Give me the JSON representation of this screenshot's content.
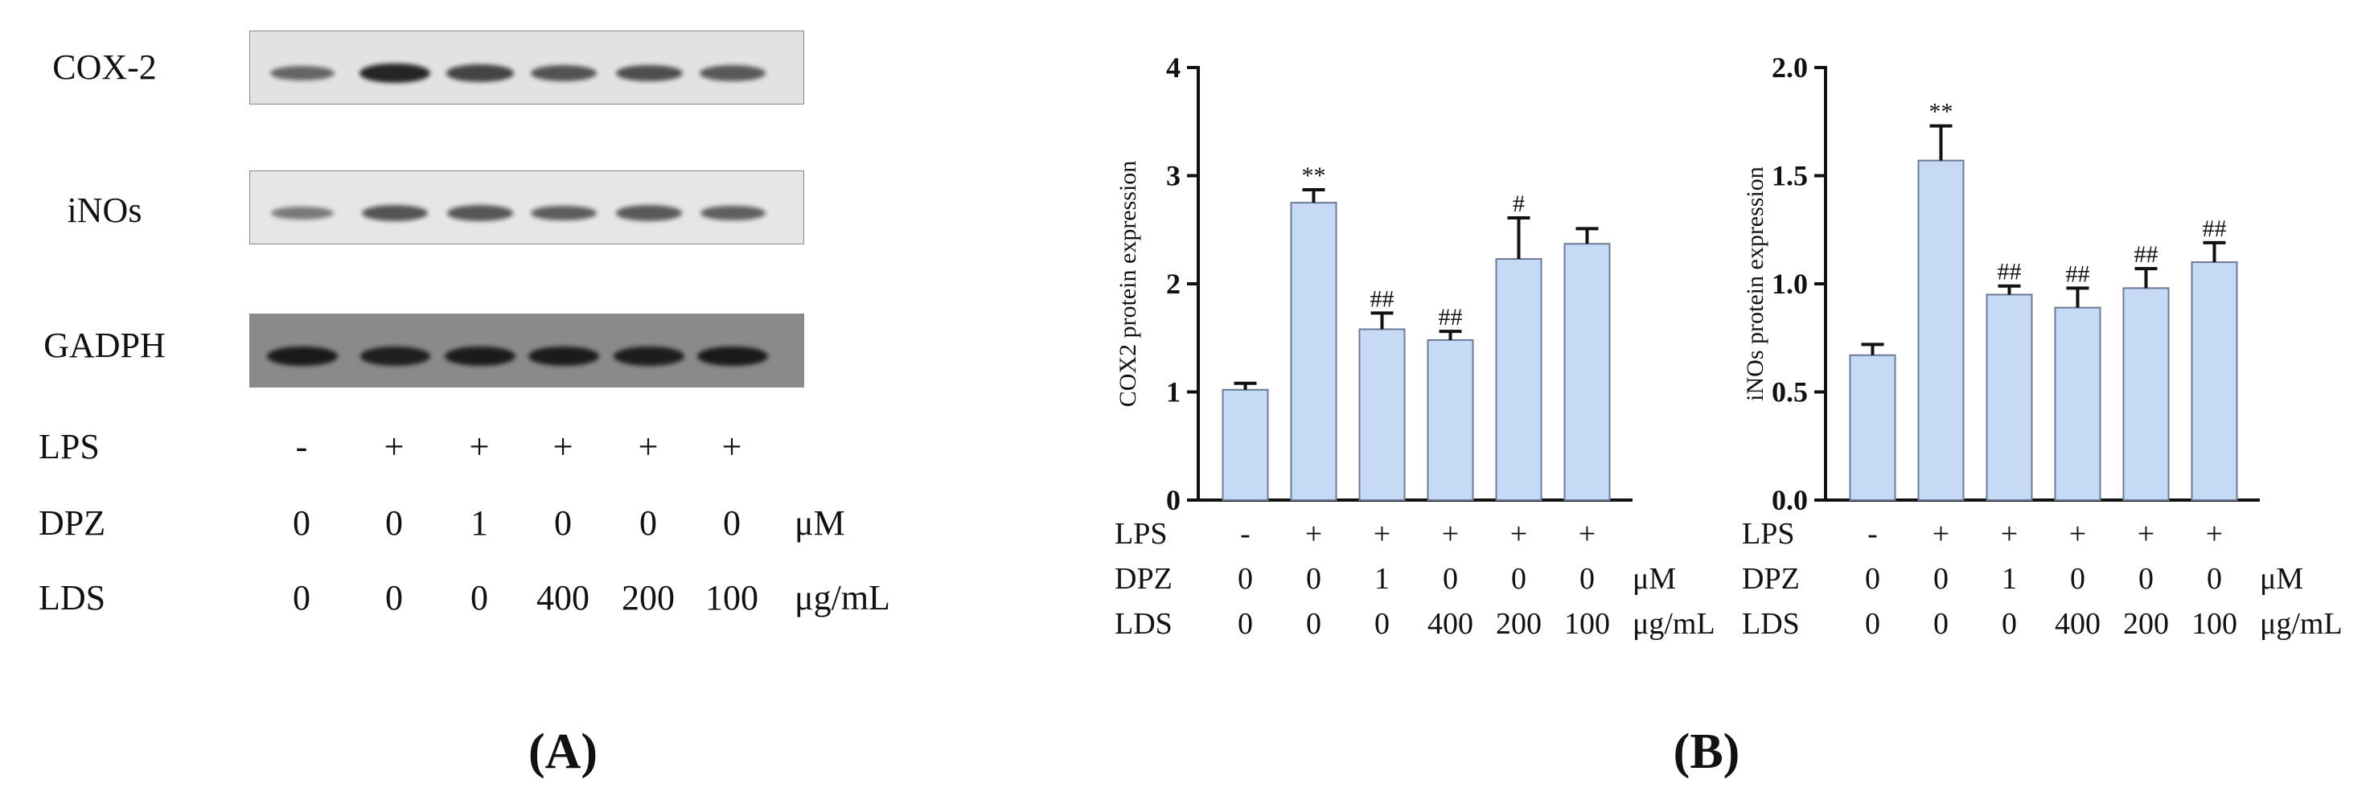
{
  "panel_a": {
    "label": "(A)",
    "blots": [
      {
        "name": "COX-2",
        "background": "#e2e2e2",
        "band_color": "#1a1a1a",
        "intensities": [
          0.5,
          0.92,
          0.72,
          0.62,
          0.65,
          0.58
        ]
      },
      {
        "name": "iNOs",
        "background": "#e6e6e6",
        "band_color": "#1a1a1a",
        "intensities": [
          0.38,
          0.62,
          0.6,
          0.56,
          0.58,
          0.55
        ]
      },
      {
        "name": "GADPH",
        "background": "#8a8a8a",
        "band_color": "#111111",
        "intensities": [
          0.9,
          0.85,
          0.88,
          0.88,
          0.86,
          0.9
        ]
      }
    ],
    "conditions": [
      {
        "name": "LPS",
        "values": [
          "-",
          "+",
          "+",
          "+",
          "+",
          "+"
        ],
        "unit": ""
      },
      {
        "name": "DPZ",
        "values": [
          "0",
          "0",
          "1",
          "0",
          "0",
          "0"
        ],
        "unit": "μM"
      },
      {
        "name": "LDS",
        "values": [
          "0",
          "0",
          "0",
          "400",
          "200",
          "100"
        ],
        "unit": "μg/mL"
      }
    ]
  },
  "panel_b": {
    "label": "(B)",
    "bar_fill": "#c6d9f5",
    "bar_stroke": "#6b7a96"
  },
  "chart_data": [
    {
      "type": "bar",
      "ylabel": "COX2 protein expression",
      "ylim": [
        0,
        4
      ],
      "yticks": [
        "0",
        "1",
        "2",
        "3",
        "4"
      ],
      "values": [
        1.02,
        2.75,
        1.58,
        1.48,
        2.23,
        2.37
      ],
      "errors": [
        0.06,
        0.12,
        0.15,
        0.08,
        0.38,
        0.14
      ],
      "annotations": [
        "",
        "**",
        "##",
        "##",
        "#",
        ""
      ],
      "conditions": [
        {
          "name": "LPS",
          "values": [
            "-",
            "+",
            "+",
            "+",
            "+",
            "+"
          ],
          "unit": ""
        },
        {
          "name": "DPZ",
          "values": [
            "0",
            "0",
            "1",
            "0",
            "0",
            "0"
          ],
          "unit": "μM"
        },
        {
          "name": "LDS",
          "values": [
            "0",
            "0",
            "0",
            "400",
            "200",
            "100"
          ],
          "unit": "μg/mL"
        }
      ]
    },
    {
      "type": "bar",
      "ylabel": "iNOs protein expression",
      "ylim": [
        0,
        2.0
      ],
      "yticks": [
        "0.0",
        "0.5",
        "1.0",
        "1.5",
        "2.0"
      ],
      "values": [
        0.67,
        1.57,
        0.95,
        0.89,
        0.98,
        1.1
      ],
      "errors": [
        0.05,
        0.16,
        0.04,
        0.09,
        0.09,
        0.09
      ],
      "annotations": [
        "",
        "**",
        "##",
        "##",
        "##",
        "##"
      ],
      "conditions": [
        {
          "name": "LPS",
          "values": [
            "-",
            "+",
            "+",
            "+",
            "+",
            "+"
          ],
          "unit": ""
        },
        {
          "name": "DPZ",
          "values": [
            "0",
            "0",
            "1",
            "0",
            "0",
            "0"
          ],
          "unit": "μM"
        },
        {
          "name": "LDS",
          "values": [
            "0",
            "0",
            "0",
            "400",
            "200",
            "100"
          ],
          "unit": "μg/mL"
        }
      ]
    }
  ]
}
